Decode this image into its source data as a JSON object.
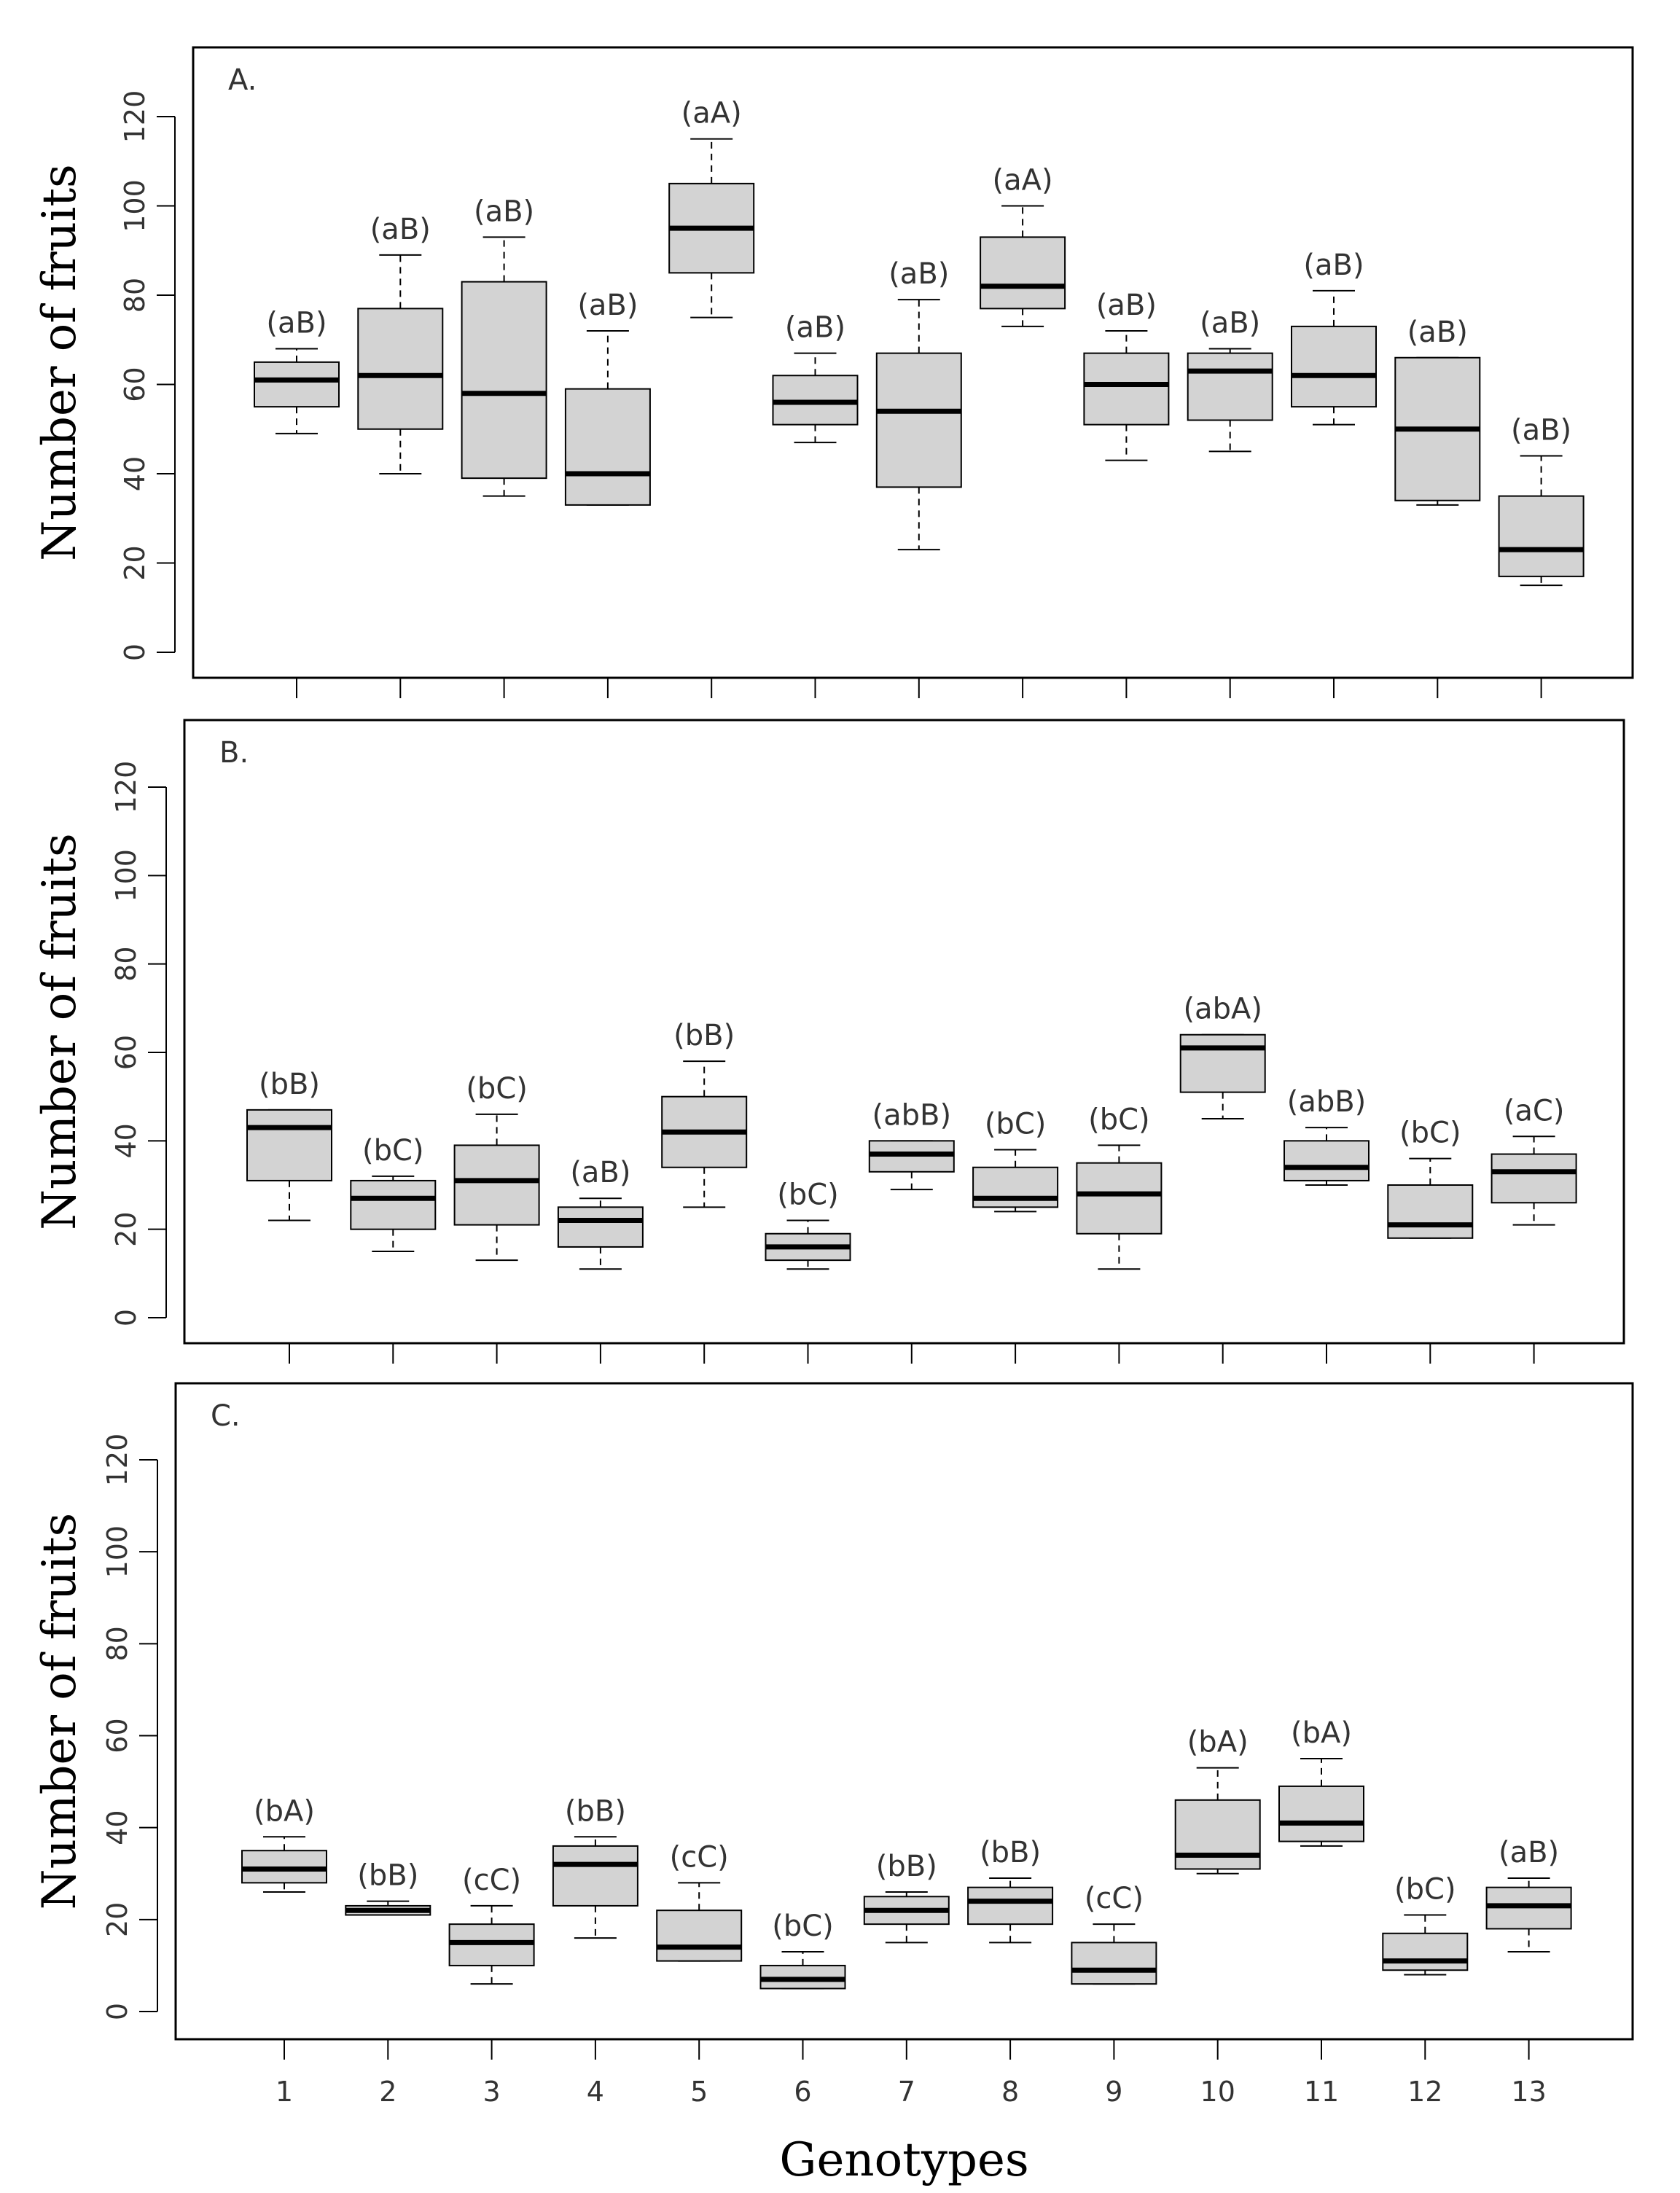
{
  "chart_data": [
    {
      "type": "boxplot",
      "panel_label": "A.",
      "ylabel": "Number of fruits",
      "xlabel": "",
      "ylim": [
        -6,
        135
      ],
      "yticks": [
        0,
        20,
        40,
        60,
        80,
        100,
        120
      ],
      "categories": [
        "1",
        "2",
        "3",
        "4",
        "5",
        "6",
        "7",
        "8",
        "9",
        "10",
        "11",
        "12",
        "13"
      ],
      "boxes": [
        {
          "min": 49,
          "q1": 55,
          "median": 61,
          "q3": 65,
          "max": 68,
          "label": "(aB)"
        },
        {
          "min": 40,
          "q1": 50,
          "median": 62,
          "q3": 77,
          "max": 89,
          "label": "(aB)"
        },
        {
          "min": 35,
          "q1": 39,
          "median": 58,
          "q3": 83,
          "max": 93,
          "label": "(aB)"
        },
        {
          "min": 33,
          "q1": 33,
          "median": 40,
          "q3": 59,
          "max": 72,
          "label": "(aB)"
        },
        {
          "min": 75,
          "q1": 85,
          "median": 95,
          "q3": 105,
          "max": 115,
          "label": "(aA)"
        },
        {
          "min": 47,
          "q1": 51,
          "median": 56,
          "q3": 62,
          "max": 67,
          "label": "(aB)"
        },
        {
          "min": 23,
          "q1": 37,
          "median": 54,
          "q3": 67,
          "max": 79,
          "label": "(aB)"
        },
        {
          "min": 73,
          "q1": 77,
          "median": 82,
          "q3": 93,
          "max": 100,
          "label": "(aA)"
        },
        {
          "min": 43,
          "q1": 51,
          "median": 60,
          "q3": 67,
          "max": 72,
          "label": "(aB)"
        },
        {
          "min": 45,
          "q1": 52,
          "median": 63,
          "q3": 67,
          "max": 68,
          "label": "(aB)"
        },
        {
          "min": 51,
          "q1": 55,
          "median": 62,
          "q3": 73,
          "max": 81,
          "label": "(aB)"
        },
        {
          "min": 33,
          "q1": 34,
          "median": 50,
          "q3": 66,
          "max": 66,
          "label": "(aB)"
        },
        {
          "min": 15,
          "q1": 17,
          "median": 23,
          "q3": 35,
          "max": 44,
          "label": "(aB)"
        }
      ]
    },
    {
      "type": "boxplot",
      "panel_label": "B.",
      "ylabel": "Number of fruits",
      "xlabel": "",
      "ylim": [
        -6,
        135
      ],
      "yticks": [
        0,
        20,
        40,
        60,
        80,
        100,
        120
      ],
      "categories": [
        "1",
        "2",
        "3",
        "4",
        "5",
        "6",
        "7",
        "8",
        "9",
        "10",
        "11",
        "12",
        "13"
      ],
      "boxes": [
        {
          "min": 22,
          "q1": 31,
          "median": 43,
          "q3": 47,
          "max": 47,
          "label": "(bB)"
        },
        {
          "min": 15,
          "q1": 20,
          "median": 27,
          "q3": 31,
          "max": 32,
          "label": "(bC)"
        },
        {
          "min": 13,
          "q1": 21,
          "median": 31,
          "q3": 39,
          "max": 46,
          "label": "(bC)"
        },
        {
          "min": 11,
          "q1": 16,
          "median": 22,
          "q3": 25,
          "max": 27,
          "label": "(aB)"
        },
        {
          "min": 25,
          "q1": 34,
          "median": 42,
          "q3": 50,
          "max": 58,
          "label": "(bB)"
        },
        {
          "min": 11,
          "q1": 13,
          "median": 16,
          "q3": 19,
          "max": 22,
          "label": "(bC)"
        },
        {
          "min": 29,
          "q1": 33,
          "median": 37,
          "q3": 40,
          "max": 40,
          "label": "(abB)"
        },
        {
          "min": 24,
          "q1": 25,
          "median": 27,
          "q3": 34,
          "max": 38,
          "label": "(bC)"
        },
        {
          "min": 11,
          "q1": 19,
          "median": 28,
          "q3": 35,
          "max": 39,
          "label": "(bC)"
        },
        {
          "min": 45,
          "q1": 51,
          "median": 61,
          "q3": 64,
          "max": 64,
          "label": "(abA)"
        },
        {
          "min": 30,
          "q1": 31,
          "median": 34,
          "q3": 40,
          "max": 43,
          "label": "(abB)"
        },
        {
          "min": 18,
          "q1": 18,
          "median": 21,
          "q3": 30,
          "max": 36,
          "label": "(bC)"
        },
        {
          "min": 21,
          "q1": 26,
          "median": 33,
          "q3": 37,
          "max": 41,
          "label": "(aC)"
        }
      ]
    },
    {
      "type": "boxplot",
      "panel_label": "C.",
      "ylabel": "Number of fruits",
      "xlabel": "Genotypes",
      "ylim": [
        -6,
        135
      ],
      "yticks": [
        0,
        20,
        40,
        60,
        80,
        100,
        120
      ],
      "categories": [
        "1",
        "2",
        "3",
        "4",
        "5",
        "6",
        "7",
        "8",
        "9",
        "10",
        "11",
        "12",
        "13"
      ],
      "boxes": [
        {
          "min": 26,
          "q1": 28,
          "median": 31,
          "q3": 35,
          "max": 38,
          "label": "(bA)"
        },
        {
          "min": 21,
          "q1": 21,
          "median": 22,
          "q3": 23,
          "max": 24,
          "label": "(bB)"
        },
        {
          "min": 6,
          "q1": 10,
          "median": 15,
          "q3": 19,
          "max": 23,
          "label": "(cC)"
        },
        {
          "min": 16,
          "q1": 23,
          "median": 32,
          "q3": 36,
          "max": 38,
          "label": "(bB)"
        },
        {
          "min": 11,
          "q1": 11,
          "median": 14,
          "q3": 22,
          "max": 28,
          "label": "(cC)"
        },
        {
          "min": 5,
          "q1": 5,
          "median": 7,
          "q3": 10,
          "max": 13,
          "label": "(bC)"
        },
        {
          "min": 15,
          "q1": 19,
          "median": 22,
          "q3": 25,
          "max": 26,
          "label": "(bB)"
        },
        {
          "min": 15,
          "q1": 19,
          "median": 24,
          "q3": 27,
          "max": 29,
          "label": "(bB)"
        },
        {
          "min": 6,
          "q1": 6,
          "median": 9,
          "q3": 15,
          "max": 19,
          "label": "(cC)"
        },
        {
          "min": 30,
          "q1": 31,
          "median": 34,
          "q3": 46,
          "max": 53,
          "label": "(bA)"
        },
        {
          "min": 36,
          "q1": 37,
          "median": 41,
          "q3": 49,
          "max": 55,
          "label": "(bA)"
        },
        {
          "min": 8,
          "q1": 9,
          "median": 11,
          "q3": 17,
          "max": 21,
          "label": "(bC)"
        },
        {
          "min": 13,
          "q1": 18,
          "median": 23,
          "q3": 27,
          "max": 29,
          "label": "(aB)"
        }
      ]
    }
  ]
}
